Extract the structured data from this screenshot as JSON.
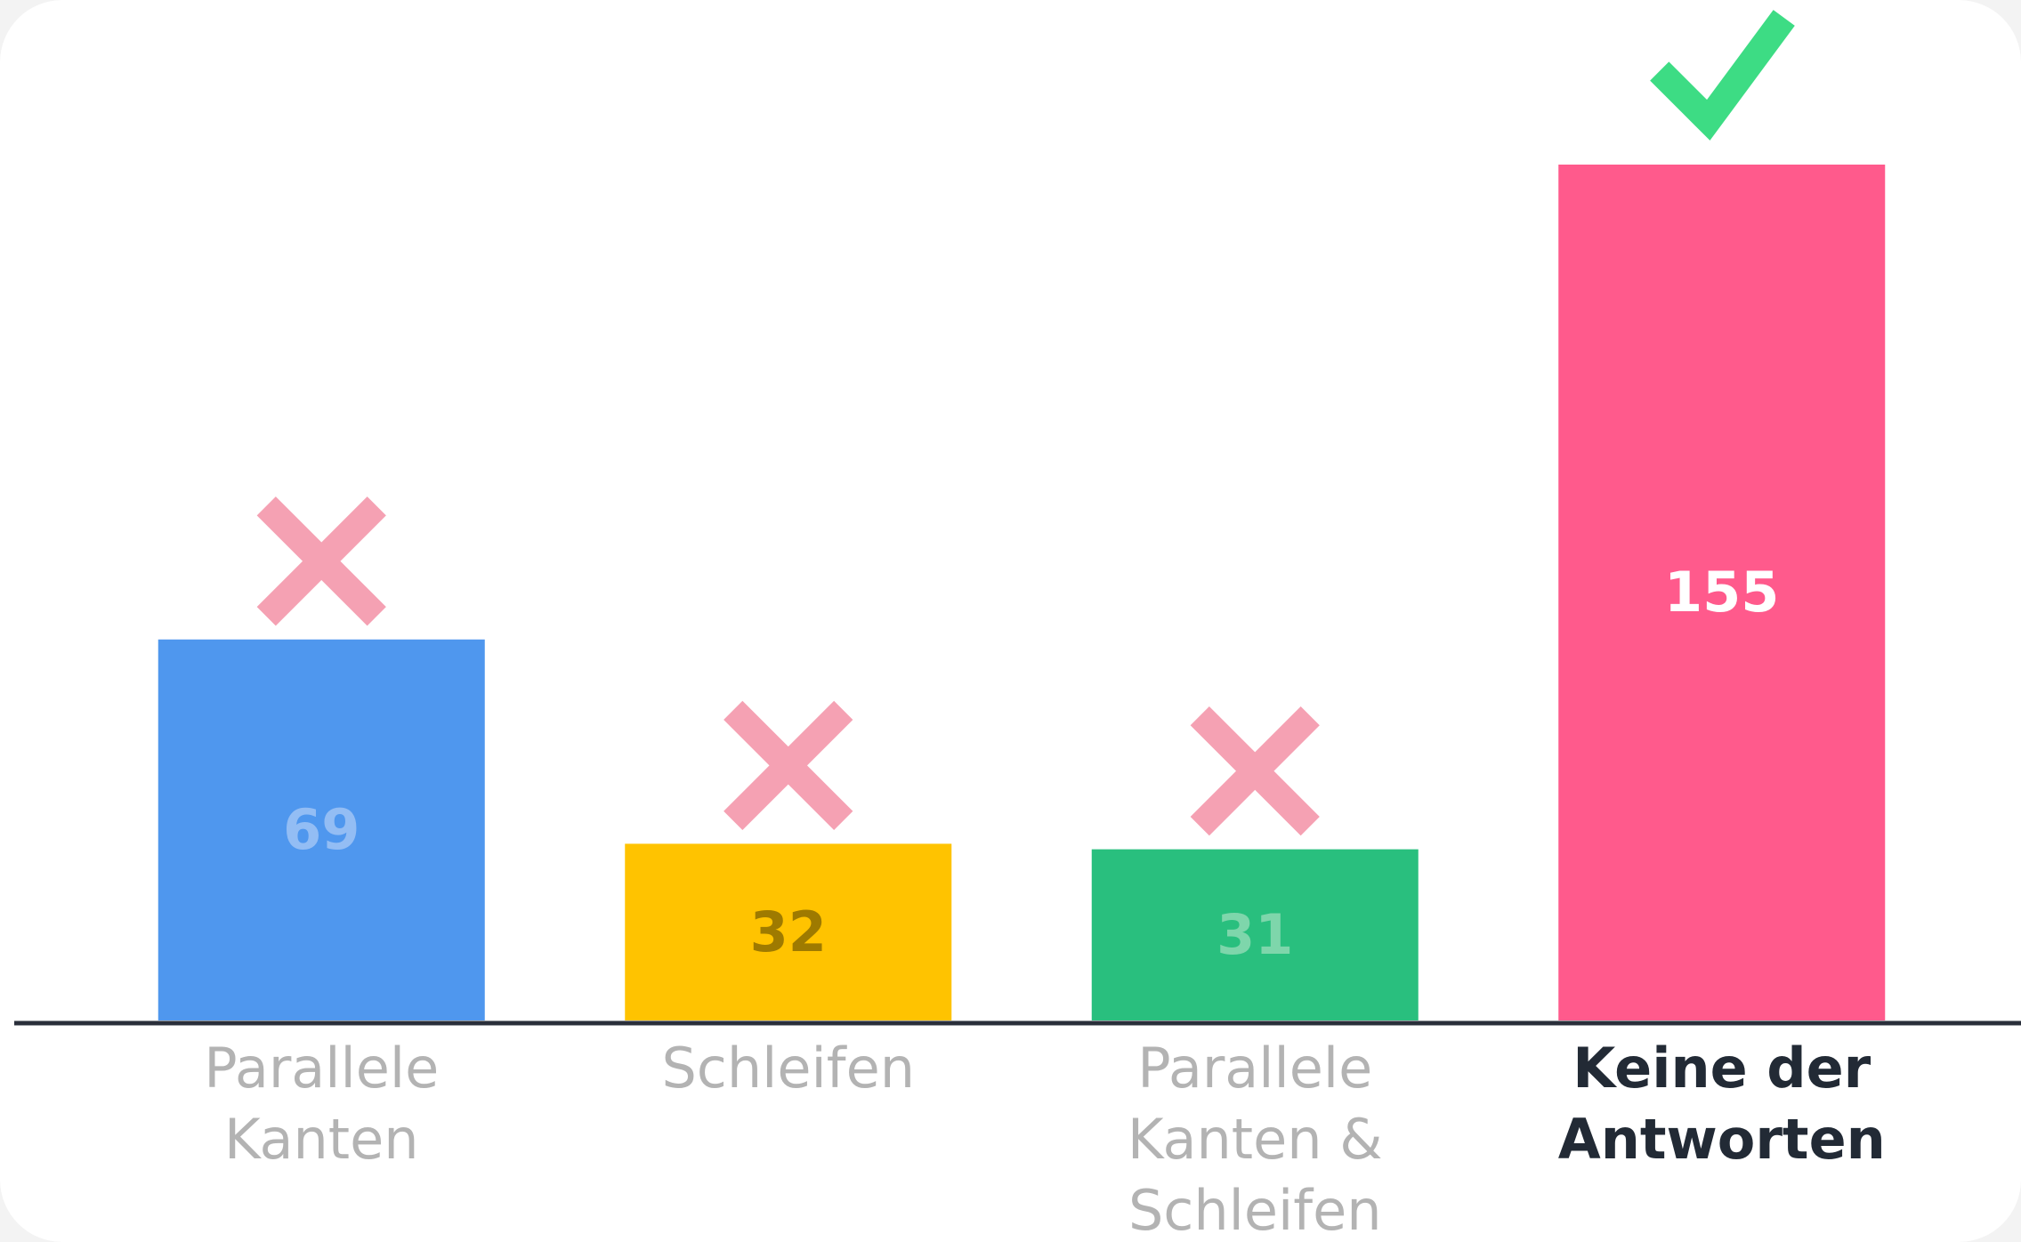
{
  "chart_data": {
    "type": "bar",
    "categories": [
      [
        "Parallele",
        "Kanten"
      ],
      [
        "Schleifen"
      ],
      [
        "Parallele",
        "Kanten &",
        "Schleifen"
      ],
      [
        "Keine der",
        "Antworten"
      ]
    ],
    "values": [
      69,
      32,
      31,
      155
    ],
    "colors": [
      "#4f97ee",
      "#ffc300",
      "#29bf7e",
      "#ff5a8c"
    ],
    "value_label_colors": [
      "#93bdf4",
      "#9e7a00",
      "#7ed6ab",
      "#ffffff"
    ],
    "correct": [
      false,
      false,
      false,
      true
    ],
    "ylim": [
      0,
      155
    ]
  }
}
